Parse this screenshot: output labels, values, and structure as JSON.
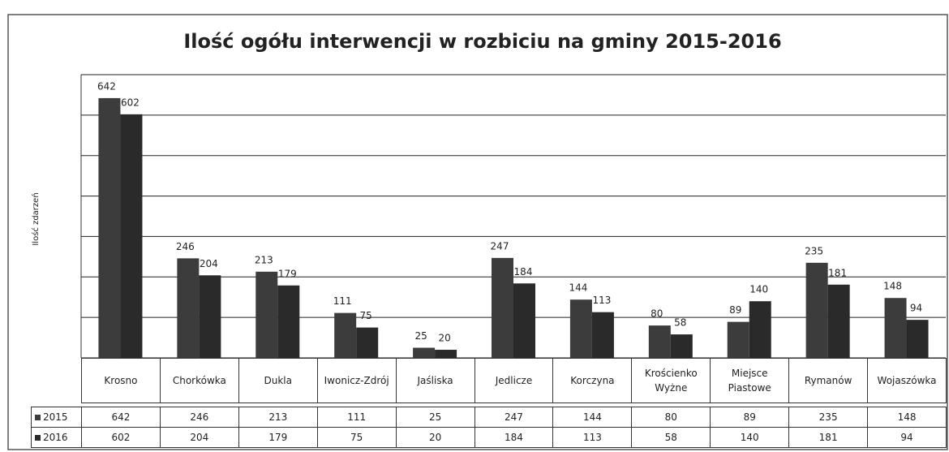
{
  "chart_data": {
    "type": "bar",
    "title": "Ilość ogółu interwencji w rozbiciu na gminy 2015-2016",
    "y_label": "Ilość zdarzeń",
    "categories": [
      "Krosno",
      "Chorkówka",
      "Dukla",
      "Iwonicz-Zdrój",
      "Jaśliska",
      "Jedlicze",
      "Korczyna",
      "Krościenko Wyżne",
      "Miejsce Piastowe",
      "Rymanów",
      "Wojaszówka"
    ],
    "series": [
      {
        "name": "2015",
        "color": "#3c3c3c",
        "values": [
          642,
          246,
          213,
          111,
          25,
          247,
          144,
          80,
          89,
          235,
          148
        ]
      },
      {
        "name": "2016",
        "color": "#2a2a2a",
        "values": [
          602,
          204,
          179,
          75,
          20,
          184,
          113,
          58,
          140,
          181,
          94
        ]
      }
    ],
    "ylim": [
      0,
      700
    ],
    "yticks": [
      0,
      100,
      200,
      300,
      400,
      500,
      600,
      700
    ],
    "grid": true
  }
}
